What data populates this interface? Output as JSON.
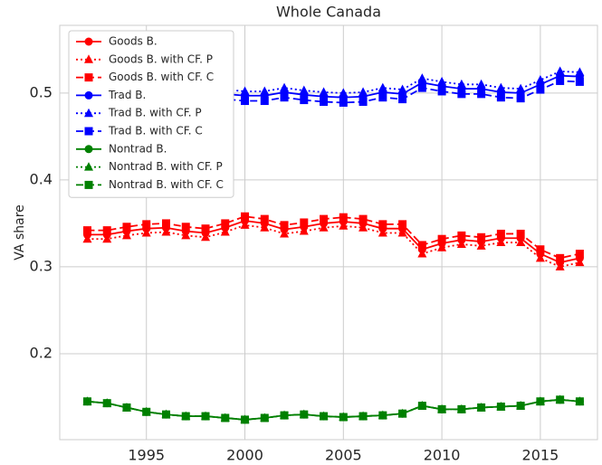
{
  "chart_data": {
    "type": "line",
    "title": "Whole Canada",
    "y_label": "VA share",
    "x": [
      1992,
      1993,
      1994,
      1995,
      1996,
      1997,
      1998,
      1999,
      2000,
      2001,
      2002,
      2003,
      2004,
      2005,
      2006,
      2007,
      2008,
      2009,
      2010,
      2011,
      2012,
      2013,
      2014,
      2015,
      2016,
      2017
    ],
    "xlim": [
      1990.6,
      2017.9
    ],
    "xticks": [
      1995,
      2000,
      2005,
      2010,
      2015
    ],
    "ylim": [
      0.101,
      0.578
    ],
    "yticks": [
      0.2,
      0.3,
      0.4,
      0.5
    ],
    "grid": true,
    "legend": "upper left",
    "series": [
      {
        "name": "Goods B.",
        "color": "#ff0000",
        "marker": "circle",
        "linestyle": "solid",
        "values": [
          0.337,
          0.337,
          0.341,
          0.344,
          0.345,
          0.341,
          0.339,
          0.345,
          0.353,
          0.35,
          0.343,
          0.346,
          0.35,
          0.352,
          0.35,
          0.344,
          0.344,
          0.32,
          0.327,
          0.331,
          0.329,
          0.333,
          0.333,
          0.315,
          0.305,
          0.31
        ]
      },
      {
        "name": "Goods B. with CF. P",
        "color": "#ff0000",
        "marker": "triangle",
        "linestyle": "dotted",
        "values": [
          0.332,
          0.332,
          0.336,
          0.339,
          0.34,
          0.336,
          0.334,
          0.34,
          0.348,
          0.345,
          0.338,
          0.341,
          0.345,
          0.347,
          0.345,
          0.339,
          0.339,
          0.315,
          0.322,
          0.326,
          0.324,
          0.328,
          0.328,
          0.31,
          0.3,
          0.305
        ]
      },
      {
        "name": "Goods B. with CF. C",
        "color": "#ff0000",
        "marker": "square",
        "linestyle": "dashed",
        "values": [
          0.342,
          0.342,
          0.346,
          0.349,
          0.35,
          0.346,
          0.344,
          0.35,
          0.358,
          0.355,
          0.348,
          0.351,
          0.355,
          0.357,
          0.355,
          0.349,
          0.349,
          0.325,
          0.332,
          0.336,
          0.334,
          0.338,
          0.338,
          0.32,
          0.31,
          0.315
        ]
      },
      {
        "name": "Trad B.",
        "color": "#0000ff",
        "marker": "circle",
        "linestyle": "solid",
        "values": [
          0.501,
          0.5,
          0.499,
          0.498,
          0.498,
          0.497,
          0.497,
          0.499,
          0.497,
          0.497,
          0.501,
          0.498,
          0.496,
          0.495,
          0.496,
          0.501,
          0.499,
          0.512,
          0.508,
          0.505,
          0.505,
          0.501,
          0.5,
          0.51,
          0.52,
          0.519
        ]
      },
      {
        "name": "Trad B. with CF. P",
        "color": "#0000ff",
        "marker": "triangle",
        "linestyle": "dotted",
        "values": [
          0.506,
          0.505,
          0.504,
          0.503,
          0.503,
          0.502,
          0.502,
          0.504,
          0.502,
          0.502,
          0.506,
          0.503,
          0.501,
          0.5,
          0.501,
          0.506,
          0.504,
          0.517,
          0.513,
          0.51,
          0.51,
          0.506,
          0.505,
          0.515,
          0.525,
          0.524
        ]
      },
      {
        "name": "Trad B. with CF. C",
        "color": "#0000ff",
        "marker": "square",
        "linestyle": "dashed",
        "values": [
          0.495,
          0.494,
          0.493,
          0.492,
          0.492,
          0.491,
          0.491,
          0.493,
          0.491,
          0.491,
          0.495,
          0.492,
          0.49,
          0.489,
          0.49,
          0.495,
          0.493,
          0.506,
          0.502,
          0.499,
          0.499,
          0.495,
          0.494,
          0.504,
          0.514,
          0.513
        ]
      },
      {
        "name": "Nontrad B.",
        "color": "#008000",
        "marker": "circle",
        "linestyle": "solid",
        "values": [
          0.145,
          0.143,
          0.138,
          0.133,
          0.13,
          0.128,
          0.128,
          0.126,
          0.124,
          0.126,
          0.129,
          0.13,
          0.128,
          0.127,
          0.128,
          0.129,
          0.131,
          0.14,
          0.136,
          0.136,
          0.138,
          0.139,
          0.14,
          0.145,
          0.147,
          0.145
        ]
      },
      {
        "name": "Nontrad B. with CF. P",
        "color": "#008000",
        "marker": "triangle",
        "linestyle": "dotted",
        "values": [
          0.145,
          0.143,
          0.138,
          0.133,
          0.13,
          0.128,
          0.128,
          0.126,
          0.124,
          0.126,
          0.129,
          0.13,
          0.128,
          0.127,
          0.128,
          0.129,
          0.131,
          0.14,
          0.136,
          0.136,
          0.138,
          0.139,
          0.14,
          0.145,
          0.147,
          0.145
        ]
      },
      {
        "name": "Nontrad B. with CF. C",
        "color": "#008000",
        "marker": "square",
        "linestyle": "dashed",
        "values": [
          0.145,
          0.143,
          0.138,
          0.133,
          0.13,
          0.128,
          0.128,
          0.126,
          0.124,
          0.126,
          0.129,
          0.13,
          0.128,
          0.127,
          0.128,
          0.129,
          0.131,
          0.14,
          0.136,
          0.136,
          0.138,
          0.139,
          0.14,
          0.145,
          0.147,
          0.145
        ]
      }
    ]
  }
}
